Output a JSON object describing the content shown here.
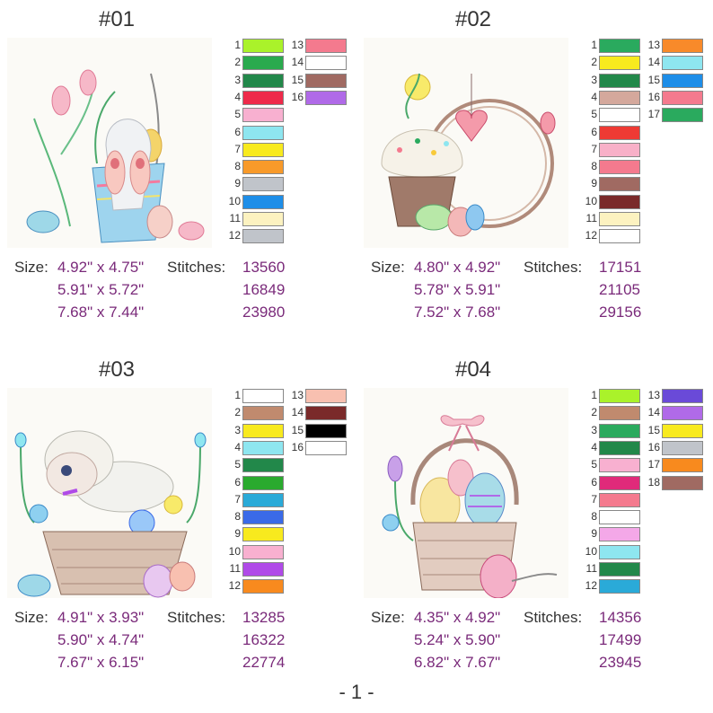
{
  "page_number": "- 1 -",
  "size_label": "Size:",
  "stitches_label": "Stitches:",
  "designs": [
    {
      "title": "#01",
      "colors": [
        "#aaf22a",
        "#2aaa4e",
        "#22884a",
        "#ee2a4a",
        "#f8b0d0",
        "#8ee6f0",
        "#f8ea1e",
        "#f89a2a",
        "#c0c4ca",
        "#1e8ee8",
        "#fcf2c0",
        "#c0c4ca",
        "#f47a8e",
        "#ffffff",
        "#a06a62",
        "#b06ae8"
      ],
      "sizes": [
        {
          "size": "4.92\" x 4.75\"",
          "stitches": "13560"
        },
        {
          "size": "5.91\" x 5.72\"",
          "stitches": "16849"
        },
        {
          "size": "7.68\" x 7.44\"",
          "stitches": "23980"
        }
      ]
    },
    {
      "title": "#02",
      "colors": [
        "#2aaa5e",
        "#f8ea1e",
        "#22884a",
        "#d4a89c",
        "#ffffff",
        "#ee3a34",
        "#f8b0c8",
        "#f47a8e",
        "#a06a62",
        "#7a2a2a",
        "#fcf2c0",
        "#ffffff",
        "#f88a2a",
        "#8ee6f0",
        "#1e8ee8",
        "#f47a8e",
        "#2aaa5e"
      ],
      "sizes": [
        {
          "size": "4.80\" x 4.92\"",
          "stitches": "17151"
        },
        {
          "size": "5.78\" x 5.91\"",
          "stitches": "21105"
        },
        {
          "size": "7.52\" x 7.68\"",
          "stitches": "29156"
        }
      ]
    },
    {
      "title": "#03",
      "colors": [
        "#ffffff",
        "#c08a6e",
        "#f8ea1e",
        "#8ee6f0",
        "#22884a",
        "#2aaa2e",
        "#2aaad8",
        "#3a6ae8",
        "#f8ea1e",
        "#f8b0d0",
        "#b04ae8",
        "#f88a1e",
        "#f8c0b0",
        "#7a2a2a",
        "#000000",
        "#ffffff"
      ],
      "sizes": [
        {
          "size": "4.91\" x 3.93\"",
          "stitches": "13285"
        },
        {
          "size": "5.90\" x 4.74\"",
          "stitches": "16322"
        },
        {
          "size": "7.67\" x 6.15\"",
          "stitches": "22774"
        }
      ]
    },
    {
      "title": "#04",
      "colors": [
        "#aaf22a",
        "#c08a6e",
        "#2aaa5e",
        "#22884a",
        "#f8b0d0",
        "#e02a7a",
        "#f47a8e",
        "#ffffff",
        "#f4a8e8",
        "#8ee6f0",
        "#22884a",
        "#2aaad8",
        "#6a4ad8",
        "#b06ae8",
        "#f8ea1e",
        "#c0c4ca",
        "#f88a1e",
        "#a06a62"
      ],
      "sizes": [
        {
          "size": "4.35\" x 4.92\"",
          "stitches": "14356"
        },
        {
          "size": "5.24\" x 5.90\"",
          "stitches": "17499"
        },
        {
          "size": "6.82\" x 7.67\"",
          "stitches": "23945"
        }
      ]
    }
  ]
}
